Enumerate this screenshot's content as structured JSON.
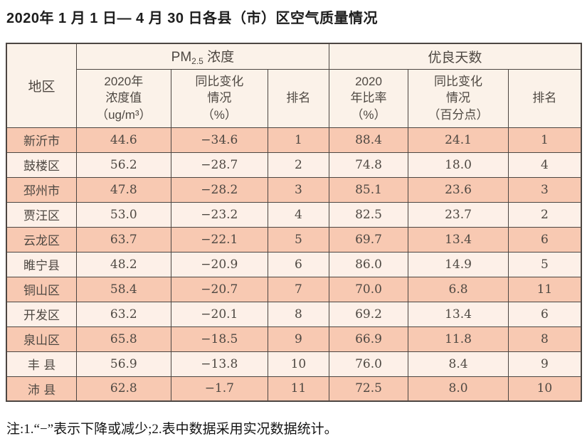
{
  "title": "2020年 1 月 1 日— 4 月 30 日各县（市）区空气质量情况",
  "note": "注:1.“−”表示下降或减少;2.表中数据采用实况数据统计。",
  "colors": {
    "border": "#4c4642",
    "row_highlight": "#f8c9b2",
    "row_light": "#fdf0e8",
    "header_background": "#fbf2e9",
    "text": "#4e4842"
  },
  "table": {
    "region_header": "地区",
    "group_pm": {
      "prefix": "PM",
      "sub": "2.5",
      "suffix": " 浓度"
    },
    "group_good": "优良天数",
    "subheaders": {
      "pm_value": "2020年\n浓度值\n（ug/m³）",
      "pm_change": "同比变化\n情况\n（%）",
      "pm_rank": "排名",
      "good_ratio": "2020\n年比率\n（%）",
      "good_change": "同比变化\n情况\n（百分点）",
      "good_rank": "排名"
    },
    "rows": [
      {
        "region": "新沂市",
        "pm_value": "44.6",
        "pm_change": "−34.6",
        "pm_rank": "1",
        "good_ratio": "88.4",
        "good_change": "24.1",
        "good_rank": "1"
      },
      {
        "region": "鼓楼区",
        "pm_value": "56.2",
        "pm_change": "−28.7",
        "pm_rank": "2",
        "good_ratio": "74.8",
        "good_change": "18.0",
        "good_rank": "4"
      },
      {
        "region": "邳州市",
        "pm_value": "47.8",
        "pm_change": "−28.2",
        "pm_rank": "3",
        "good_ratio": "85.1",
        "good_change": "23.6",
        "good_rank": "3"
      },
      {
        "region": "贾汪区",
        "pm_value": "53.0",
        "pm_change": "−23.2",
        "pm_rank": "4",
        "good_ratio": "82.5",
        "good_change": "23.7",
        "good_rank": "2"
      },
      {
        "region": "云龙区",
        "pm_value": "63.7",
        "pm_change": "−22.1",
        "pm_rank": "5",
        "good_ratio": "69.7",
        "good_change": "13.4",
        "good_rank": "6"
      },
      {
        "region": "睢宁县",
        "pm_value": "48.2",
        "pm_change": "−20.9",
        "pm_rank": "6",
        "good_ratio": "86.0",
        "good_change": "14.9",
        "good_rank": "5"
      },
      {
        "region": "铜山区",
        "pm_value": "58.4",
        "pm_change": "−20.7",
        "pm_rank": "7",
        "good_ratio": "70.0",
        "good_change": "6.8",
        "good_rank": "11"
      },
      {
        "region": "开发区",
        "pm_value": "63.2",
        "pm_change": "−20.1",
        "pm_rank": "8",
        "good_ratio": "69.2",
        "good_change": "13.4",
        "good_rank": "6"
      },
      {
        "region": "泉山区",
        "pm_value": "65.8",
        "pm_change": "−18.5",
        "pm_rank": "9",
        "good_ratio": "66.9",
        "good_change": "11.8",
        "good_rank": "8"
      },
      {
        "region": "丰 县",
        "pm_value": "56.9",
        "pm_change": "−13.8",
        "pm_rank": "10",
        "good_ratio": "76.0",
        "good_change": "8.4",
        "good_rank": "9"
      },
      {
        "region": "沛 县",
        "pm_value": "62.8",
        "pm_change": "−1.7",
        "pm_rank": "11",
        "good_ratio": "72.5",
        "good_change": "8.0",
        "good_rank": "10"
      }
    ]
  }
}
